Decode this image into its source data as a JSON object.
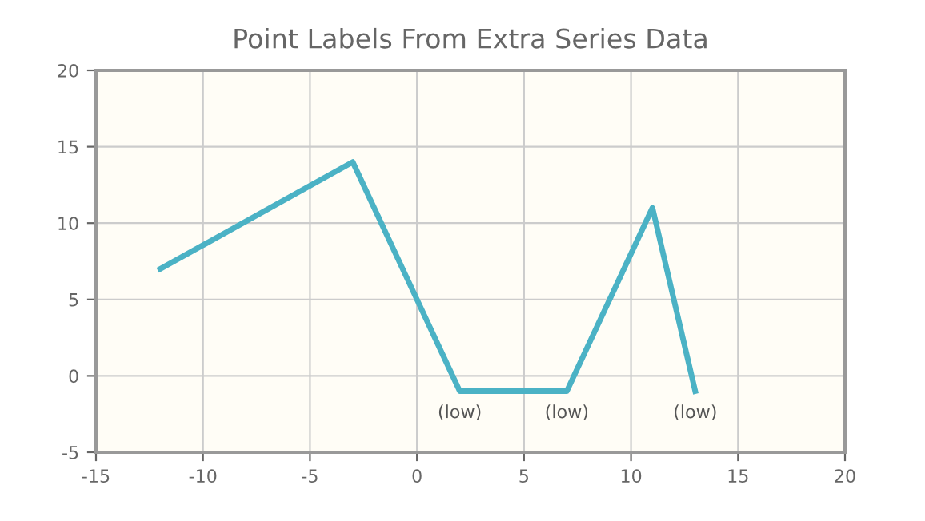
{
  "chart_data": {
    "type": "line",
    "title": "Point Labels From Extra Series Data",
    "x": [
      -12,
      -3,
      2,
      7,
      11,
      13
    ],
    "series": [
      {
        "color": "#4bb2c5",
        "values": [
          7,
          14,
          -1,
          -1,
          11,
          -1
        ]
      }
    ],
    "annotations": [
      {
        "text": "(low)",
        "x": 2,
        "y": -1
      },
      {
        "text": "(low)",
        "x": 7,
        "y": -1
      },
      {
        "text": "(low)",
        "x": 13,
        "y": -1
      }
    ],
    "xlim": [
      -15,
      20
    ],
    "xticks": [
      -15,
      -10,
      -5,
      0,
      5,
      10,
      15,
      20
    ],
    "ylim": [
      -5,
      20
    ],
    "yticks": [
      -5,
      0,
      5,
      10,
      15,
      20
    ],
    "grid": true,
    "marker": "none",
    "line_style": "solid"
  }
}
